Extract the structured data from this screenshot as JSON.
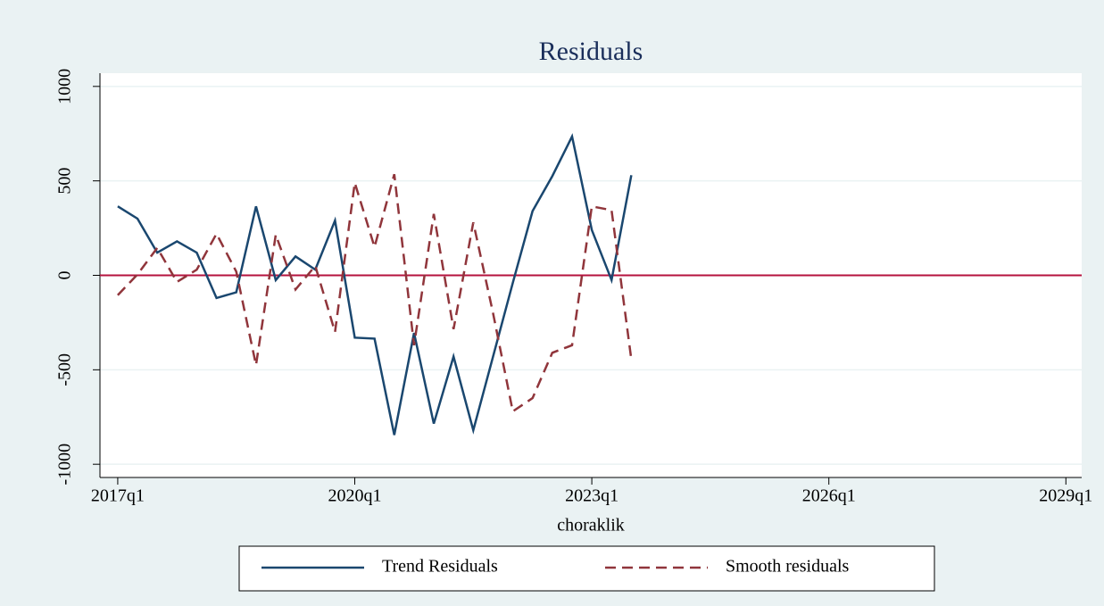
{
  "chart_data": {
    "type": "line",
    "title": "Residuals",
    "xlabel": "choraklik",
    "x": [
      228,
      229,
      230,
      231,
      232,
      233,
      234,
      235,
      236,
      237,
      238,
      239,
      240,
      241,
      242,
      243,
      244,
      245,
      246,
      247,
      248,
      249,
      250,
      251,
      252,
      253,
      254
    ],
    "series": [
      {
        "name": "Trend Residuals",
        "color": "#1a476f",
        "dash": "solid",
        "values": [
          365,
          300,
          120,
          180,
          120,
          -120,
          -90,
          365,
          -25,
          100,
          30,
          290,
          -330,
          -335,
          -845,
          -305,
          -785,
          -430,
          -820,
          -430,
          -40,
          340,
          525,
          735,
          240,
          -25,
          530
        ]
      },
      {
        "name": "Smooth residuals",
        "color": "#90353b",
        "dash": "dashed",
        "values": [
          -105,
          5,
          145,
          -35,
          30,
          220,
          20,
          -475,
          215,
          -75,
          50,
          -300,
          490,
          150,
          535,
          -370,
          325,
          -285,
          280,
          -200,
          -720,
          -650,
          -410,
          -370,
          365,
          345,
          -445
        ]
      }
    ],
    "xlim": [
      227.1,
      276.8
    ],
    "xticks": [
      {
        "value": 228,
        "label": "2017q1"
      },
      {
        "value": 240,
        "label": "2020q1"
      },
      {
        "value": 252,
        "label": "2023q1"
      },
      {
        "value": 264,
        "label": "2026q1"
      },
      {
        "value": 276,
        "label": "2029q1"
      }
    ],
    "ylim": [
      -1070,
      1070
    ],
    "yticks": [
      -1000,
      -500,
      0,
      500,
      1000
    ],
    "yline": {
      "value": 0,
      "color": "#b5123e"
    },
    "grid": true,
    "legend": "bottom"
  }
}
